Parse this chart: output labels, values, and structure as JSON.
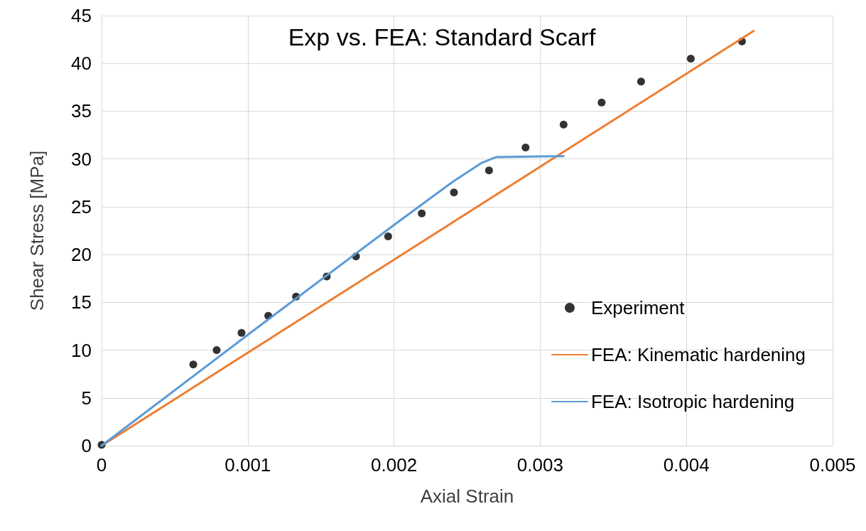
{
  "chart_data": {
    "type": "scatter",
    "title": "Exp vs. FEA: Standard Scarf",
    "xlabel": "Axial Strain",
    "ylabel": "Shear Stress [MPa]",
    "xlim": [
      0,
      0.005
    ],
    "xticks": [
      0,
      0.001,
      0.002,
      0.003,
      0.004,
      0.005
    ],
    "ylim": [
      0,
      45
    ],
    "yticks": [
      0,
      5,
      10,
      15,
      20,
      25,
      30,
      35,
      40,
      45
    ],
    "grid": true,
    "legend": "bottom right",
    "series": [
      {
        "name": "Experiment",
        "marker": "circle",
        "color": "#000000",
        "x": [
          0,
          0.000627,
          0.000787,
          0.000957,
          0.00114,
          0.00133,
          0.00154,
          0.00174,
          0.00196,
          0.00219,
          0.00241,
          0.00265,
          0.0029,
          0.00316,
          0.00342,
          0.00369,
          0.00403,
          0.00438
        ],
        "values": [
          0.1,
          8.5,
          10.0,
          11.8,
          13.6,
          15.6,
          17.7,
          19.8,
          21.9,
          24.3,
          26.5,
          28.8,
          31.2,
          33.6,
          35.9,
          38.1,
          40.5,
          42.3
        ]
      },
      {
        "name": "FEA: Kinematic hardening",
        "type": "line",
        "marker": "none",
        "color": "#ed7d31",
        "x": [
          0,
          0.00446
        ],
        "values": [
          0,
          43.4
        ]
      },
      {
        "name": "FEA: Isotropic hardening",
        "type": "line",
        "marker": "none",
        "color": "#5b9bd5",
        "x": [
          0,
          0.001,
          0.002,
          0.0024,
          0.0026,
          0.0027,
          0.00316
        ],
        "values": [
          0,
          11.6,
          23.1,
          27.6,
          29.6,
          30.2,
          30.3
        ]
      }
    ]
  }
}
